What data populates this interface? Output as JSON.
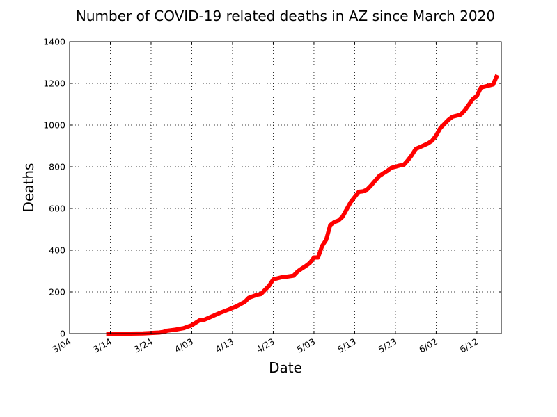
{
  "chart_data": {
    "type": "line",
    "title": "Number of COVID-19 related deaths in AZ since March 2020",
    "xlabel": "Date",
    "ylabel": "Deaths",
    "x_tick_labels": [
      "3/04",
      "3/14",
      "3/24",
      "4/03",
      "4/13",
      "4/23",
      "5/03",
      "5/13",
      "5/23",
      "6/02",
      "6/12"
    ],
    "x_tick_days": [
      0,
      10,
      20,
      30,
      40,
      50,
      60,
      70,
      80,
      90,
      100
    ],
    "xlim_days": [
      0,
      106
    ],
    "ylim": [
      0,
      1400
    ],
    "y_ticks": [
      "0",
      "200",
      "400",
      "600",
      "800",
      "1000",
      "1200",
      "1400"
    ],
    "grid": true,
    "line_color": "#ff0000",
    "series": [
      {
        "name": "",
        "x_days": [
          9,
          12,
          15,
          18,
          20,
          22,
          23,
          24,
          26,
          28,
          30,
          32,
          33,
          35,
          37,
          39,
          41,
          43,
          44,
          46,
          47,
          49,
          50,
          52,
          53,
          55,
          56,
          57,
          58,
          59,
          60,
          61,
          62,
          63,
          64,
          65,
          66,
          67,
          69,
          71,
          72,
          73,
          74,
          76,
          77,
          78,
          79,
          80,
          81,
          82,
          83,
          84,
          85,
          87,
          88,
          89,
          90,
          91,
          92,
          93,
          94,
          95,
          96,
          97,
          99,
          100,
          101,
          102,
          104,
          105
        ],
        "values": [
          0,
          0,
          0,
          1,
          3,
          5,
          8,
          14,
          19,
          26,
          40,
          65,
          66,
          83,
          100,
          115,
          131,
          152,
          172,
          186,
          190,
          230,
          260,
          270,
          272,
          278,
          298,
          312,
          324,
          339,
          365,
          365,
          420,
          450,
          520,
          535,
          542,
          560,
          630,
          680,
          682,
          690,
          710,
          755,
          768,
          780,
          795,
          800,
          806,
          808,
          830,
          855,
          886,
          903,
          912,
          925,
          950,
          985,
          1005,
          1025,
          1040,
          1045,
          1050,
          1070,
          1125,
          1140,
          1180,
          1185,
          1195,
          1240
        ]
      }
    ]
  }
}
